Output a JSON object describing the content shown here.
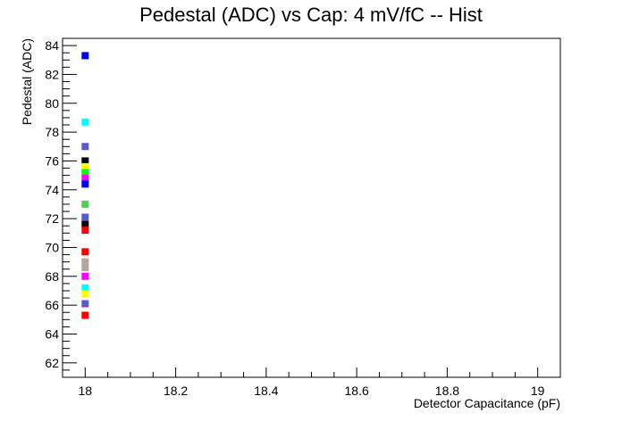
{
  "chart_data": {
    "type": "scatter",
    "title": "Pedestal (ADC) vs Cap: 4 mV/fC -- Hist",
    "xlabel": "Detector Capacitance (pF)",
    "ylabel": "Pedestal (ADC)",
    "xlim": [
      17.95,
      19.05
    ],
    "ylim": [
      61,
      84.5
    ],
    "grid": false,
    "legend": "none",
    "x_ticks": [
      "18",
      "18.2",
      "18.4",
      "18.6",
      "18.8",
      "19"
    ],
    "y_ticks": [
      "62",
      "64",
      "66",
      "68",
      "70",
      "72",
      "74",
      "76",
      "78",
      "80",
      "82",
      "84"
    ],
    "points": [
      {
        "x": 18,
        "y": 83.3,
        "color": "#0000ff"
      },
      {
        "x": 18,
        "y": 78.7,
        "color": "#00ffff"
      },
      {
        "x": 18,
        "y": 77.0,
        "color": "#5a5acd"
      },
      {
        "x": 18,
        "y": 76.0,
        "color": "#000000"
      },
      {
        "x": 18,
        "y": 75.6,
        "color": "#ffff00"
      },
      {
        "x": 18,
        "y": 75.2,
        "color": "#00ff00"
      },
      {
        "x": 18,
        "y": 74.8,
        "color": "#ff00ff"
      },
      {
        "x": 18,
        "y": 74.4,
        "color": "#0000ff"
      },
      {
        "x": 18,
        "y": 73.0,
        "color": "#55cc55"
      },
      {
        "x": 18,
        "y": 72.1,
        "color": "#5a5acd"
      },
      {
        "x": 18,
        "y": 71.6,
        "color": "#000000"
      },
      {
        "x": 18,
        "y": 71.2,
        "color": "#ff0000"
      },
      {
        "x": 18,
        "y": 69.7,
        "color": "#ff0000"
      },
      {
        "x": 18,
        "y": 69.0,
        "color": "#b0a8a0"
      },
      {
        "x": 18,
        "y": 68.6,
        "color": "#b0a8a0"
      },
      {
        "x": 18,
        "y": 68.0,
        "color": "#ff00ff"
      },
      {
        "x": 18,
        "y": 67.2,
        "color": "#00ffff"
      },
      {
        "x": 18,
        "y": 66.8,
        "color": "#ffff00"
      },
      {
        "x": 18,
        "y": 66.1,
        "color": "#5a5acd"
      },
      {
        "x": 18,
        "y": 65.3,
        "color": "#ff0000"
      }
    ]
  }
}
